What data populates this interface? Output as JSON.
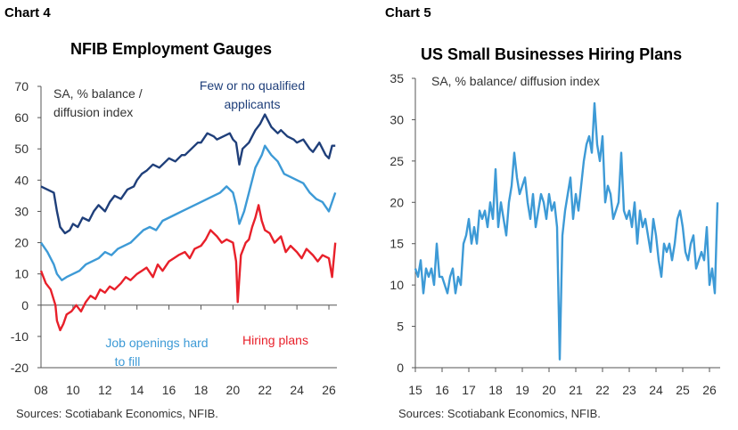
{
  "colors": {
    "dark_blue": "#1f3f7a",
    "light_blue": "#3d9ad6",
    "red": "#e8202a",
    "axis": "#555555",
    "text": "#333333"
  },
  "chart4": {
    "panel_label": "Chart 4",
    "title": "NFIB Employment Gauges",
    "source": "Sources: Scotiabank Economics, NFIB."
  },
  "chart5": {
    "panel_label": "Chart 5",
    "title": "US Small Businesses Hiring Plans",
    "source": "Sources: Scotiabank Economics, NFIB."
  },
  "chart_data": [
    {
      "type": "line",
      "title": "NFIB Employment Gauges",
      "unit_note": [
        "SA, % balance /",
        "diffusion index"
      ],
      "xlabel": "",
      "ylabel": "",
      "ylim": [
        -20,
        70
      ],
      "yticks": [
        -20,
        -10,
        0,
        10,
        20,
        30,
        40,
        50,
        60,
        70
      ],
      "xlim": [
        2008,
        2026.5
      ],
      "xtick_labels": [
        "08",
        "10",
        "12",
        "14",
        "16",
        "18",
        "20",
        "22",
        "24",
        "26"
      ],
      "xtick_values": [
        2008,
        2010,
        2012,
        2014,
        2016,
        2018,
        2020,
        2022,
        2024,
        2026
      ],
      "series": [
        {
          "name": "Few or no qualified applicants",
          "label_lines": [
            "Few or no qualified",
            "applicants"
          ],
          "color": "#1f3f7a",
          "x": [
            2008.0,
            2008.4,
            2008.8,
            2009.0,
            2009.2,
            2009.5,
            2009.8,
            2010.0,
            2010.3,
            2010.6,
            2011.0,
            2011.3,
            2011.6,
            2012.0,
            2012.3,
            2012.6,
            2013.0,
            2013.4,
            2013.8,
            2014.0,
            2014.3,
            2014.6,
            2015.0,
            2015.4,
            2015.8,
            2016.0,
            2016.4,
            2016.8,
            2017.0,
            2017.4,
            2017.8,
            2018.0,
            2018.4,
            2018.8,
            2019.0,
            2019.4,
            2019.8,
            2020.0,
            2020.2,
            2020.4,
            2020.6,
            2021.0,
            2021.4,
            2021.7,
            2022.0,
            2022.4,
            2022.8,
            2023.0,
            2023.4,
            2023.8,
            2024.0,
            2024.4,
            2024.8,
            2025.0,
            2025.4,
            2025.8,
            2026.0,
            2026.2,
            2026.4
          ],
          "y": [
            38,
            37,
            36,
            30,
            25,
            23,
            24,
            26,
            25,
            28,
            27,
            30,
            32,
            30,
            33,
            35,
            34,
            37,
            38,
            40,
            42,
            43,
            45,
            44,
            46,
            47,
            46,
            48,
            48,
            50,
            52,
            52,
            55,
            54,
            53,
            54,
            55,
            53,
            52,
            45,
            50,
            52,
            56,
            58,
            61,
            57,
            55,
            56,
            54,
            53,
            52,
            53,
            50,
            49,
            52,
            48,
            47,
            51,
            51
          ]
        },
        {
          "name": "Job openings hard to fill",
          "label_lines": [
            "Job openings hard",
            "to fill"
          ],
          "color": "#3d9ad6",
          "x": [
            2008.0,
            2008.4,
            2008.8,
            2009.0,
            2009.3,
            2009.6,
            2010.0,
            2010.4,
            2010.8,
            2011.2,
            2011.6,
            2012.0,
            2012.4,
            2012.8,
            2013.2,
            2013.6,
            2014.0,
            2014.4,
            2014.8,
            2015.2,
            2015.6,
            2016.0,
            2016.4,
            2016.8,
            2017.2,
            2017.6,
            2018.0,
            2018.4,
            2018.8,
            2019.2,
            2019.6,
            2020.0,
            2020.2,
            2020.4,
            2020.7,
            2021.0,
            2021.4,
            2021.8,
            2022.0,
            2022.4,
            2022.8,
            2023.2,
            2023.6,
            2024.0,
            2024.4,
            2024.8,
            2025.2,
            2025.6,
            2026.0,
            2026.2,
            2026.4
          ],
          "y": [
            20,
            17,
            13,
            10,
            8,
            9,
            10,
            11,
            13,
            14,
            15,
            17,
            16,
            18,
            19,
            20,
            22,
            24,
            25,
            24,
            27,
            28,
            29,
            30,
            31,
            32,
            33,
            34,
            35,
            36,
            38,
            36,
            32,
            26,
            30,
            36,
            44,
            48,
            51,
            48,
            46,
            42,
            41,
            40,
            39,
            36,
            34,
            33,
            30,
            33,
            36
          ]
        },
        {
          "name": "Hiring plans",
          "label_lines": [
            "Hiring plans"
          ],
          "color": "#e8202a",
          "x": [
            2008.0,
            2008.3,
            2008.6,
            2008.9,
            2009.0,
            2009.2,
            2009.4,
            2009.6,
            2009.9,
            2010.2,
            2010.5,
            2010.8,
            2011.1,
            2011.4,
            2011.7,
            2012.0,
            2012.3,
            2012.6,
            2013.0,
            2013.3,
            2013.6,
            2014.0,
            2014.3,
            2014.6,
            2015.0,
            2015.3,
            2015.6,
            2016.0,
            2016.3,
            2016.6,
            2017.0,
            2017.3,
            2017.6,
            2018.0,
            2018.3,
            2018.6,
            2019.0,
            2019.3,
            2019.6,
            2020.0,
            2020.2,
            2020.3,
            2020.5,
            2020.8,
            2021.0,
            2021.2,
            2021.4,
            2021.6,
            2021.8,
            2022.0,
            2022.3,
            2022.6,
            2023.0,
            2023.3,
            2023.6,
            2024.0,
            2024.3,
            2024.6,
            2025.0,
            2025.3,
            2025.6,
            2026.0,
            2026.2,
            2026.4
          ],
          "y": [
            11,
            7,
            5,
            0,
            -5,
            -8,
            -6,
            -3,
            -2,
            0,
            -2,
            1,
            3,
            2,
            5,
            4,
            6,
            5,
            7,
            9,
            8,
            10,
            11,
            12,
            9,
            13,
            11,
            14,
            15,
            16,
            17,
            15,
            18,
            19,
            21,
            24,
            22,
            20,
            21,
            20,
            14,
            1,
            16,
            20,
            21,
            25,
            28,
            32,
            27,
            24,
            23,
            20,
            22,
            17,
            19,
            17,
            15,
            18,
            16,
            14,
            16,
            15,
            9,
            20
          ]
        }
      ]
    },
    {
      "type": "line",
      "title": "US Small Businesses Hiring Plans",
      "unit_note": [
        "SA, % balance/ diffusion index"
      ],
      "xlabel": "",
      "ylabel": "",
      "ylim": [
        0,
        35
      ],
      "yticks": [
        0,
        5,
        10,
        15,
        20,
        25,
        30,
        35
      ],
      "xlim": [
        2015,
        2026.4
      ],
      "xtick_labels": [
        "15",
        "16",
        "17",
        "18",
        "19",
        "20",
        "21",
        "22",
        "23",
        "24",
        "25",
        "26"
      ],
      "xtick_values": [
        2015,
        2016,
        2017,
        2018,
        2019,
        2020,
        2021,
        2022,
        2023,
        2024,
        2025,
        2026
      ],
      "series": [
        {
          "color": "#3d9ad6",
          "x": [
            2015.0,
            2015.1,
            2015.2,
            2015.3,
            2015.4,
            2015.5,
            2015.6,
            2015.7,
            2015.8,
            2015.9,
            2016.0,
            2016.1,
            2016.2,
            2016.3,
            2016.4,
            2016.5,
            2016.6,
            2016.7,
            2016.8,
            2016.9,
            2017.0,
            2017.1,
            2017.2,
            2017.3,
            2017.4,
            2017.5,
            2017.6,
            2017.7,
            2017.8,
            2017.9,
            2018.0,
            2018.1,
            2018.2,
            2018.3,
            2018.4,
            2018.5,
            2018.6,
            2018.7,
            2018.8,
            2018.9,
            2019.0,
            2019.1,
            2019.2,
            2019.3,
            2019.4,
            2019.5,
            2019.6,
            2019.7,
            2019.8,
            2019.9,
            2020.0,
            2020.1,
            2020.2,
            2020.3,
            2020.4,
            2020.5,
            2020.6,
            2020.7,
            2020.8,
            2020.9,
            2021.0,
            2021.1,
            2021.2,
            2021.3,
            2021.4,
            2021.5,
            2021.6,
            2021.7,
            2021.8,
            2021.9,
            2022.0,
            2022.1,
            2022.2,
            2022.3,
            2022.4,
            2022.5,
            2022.6,
            2022.7,
            2022.8,
            2022.9,
            2023.0,
            2023.1,
            2023.2,
            2023.3,
            2023.4,
            2023.5,
            2023.6,
            2023.7,
            2023.8,
            2023.9,
            2024.0,
            2024.1,
            2024.2,
            2024.3,
            2024.4,
            2024.5,
            2024.6,
            2024.7,
            2024.8,
            2024.9,
            2025.0,
            2025.1,
            2025.2,
            2025.3,
            2025.4,
            2025.5,
            2025.6,
            2025.7,
            2025.8,
            2025.9,
            2026.0,
            2026.1,
            2026.2,
            2026.3
          ],
          "y": [
            12,
            11,
            13,
            9,
            12,
            11,
            12,
            10,
            15,
            11,
            11,
            10,
            9,
            11,
            12,
            9,
            11,
            10,
            15,
            16,
            18,
            15,
            17,
            15,
            19,
            18,
            19,
            17,
            20,
            18,
            24,
            17,
            20,
            18,
            16,
            20,
            22,
            26,
            23,
            21,
            22,
            23,
            20,
            18,
            21,
            17,
            19,
            21,
            20,
            18,
            21,
            19,
            20,
            17,
            1,
            16,
            19,
            21,
            23,
            18,
            21,
            19,
            22,
            25,
            27,
            28,
            26,
            32,
            27,
            25,
            28,
            20,
            22,
            21,
            18,
            19,
            20,
            26,
            19,
            18,
            19,
            17,
            20,
            15,
            19,
            17,
            18,
            16,
            14,
            18,
            16,
            13,
            11,
            15,
            14,
            15,
            13,
            15,
            18,
            19,
            17,
            14,
            13,
            15,
            16,
            12,
            13,
            14,
            13,
            17,
            10,
            12,
            9,
            20
          ]
        }
      ]
    }
  ]
}
